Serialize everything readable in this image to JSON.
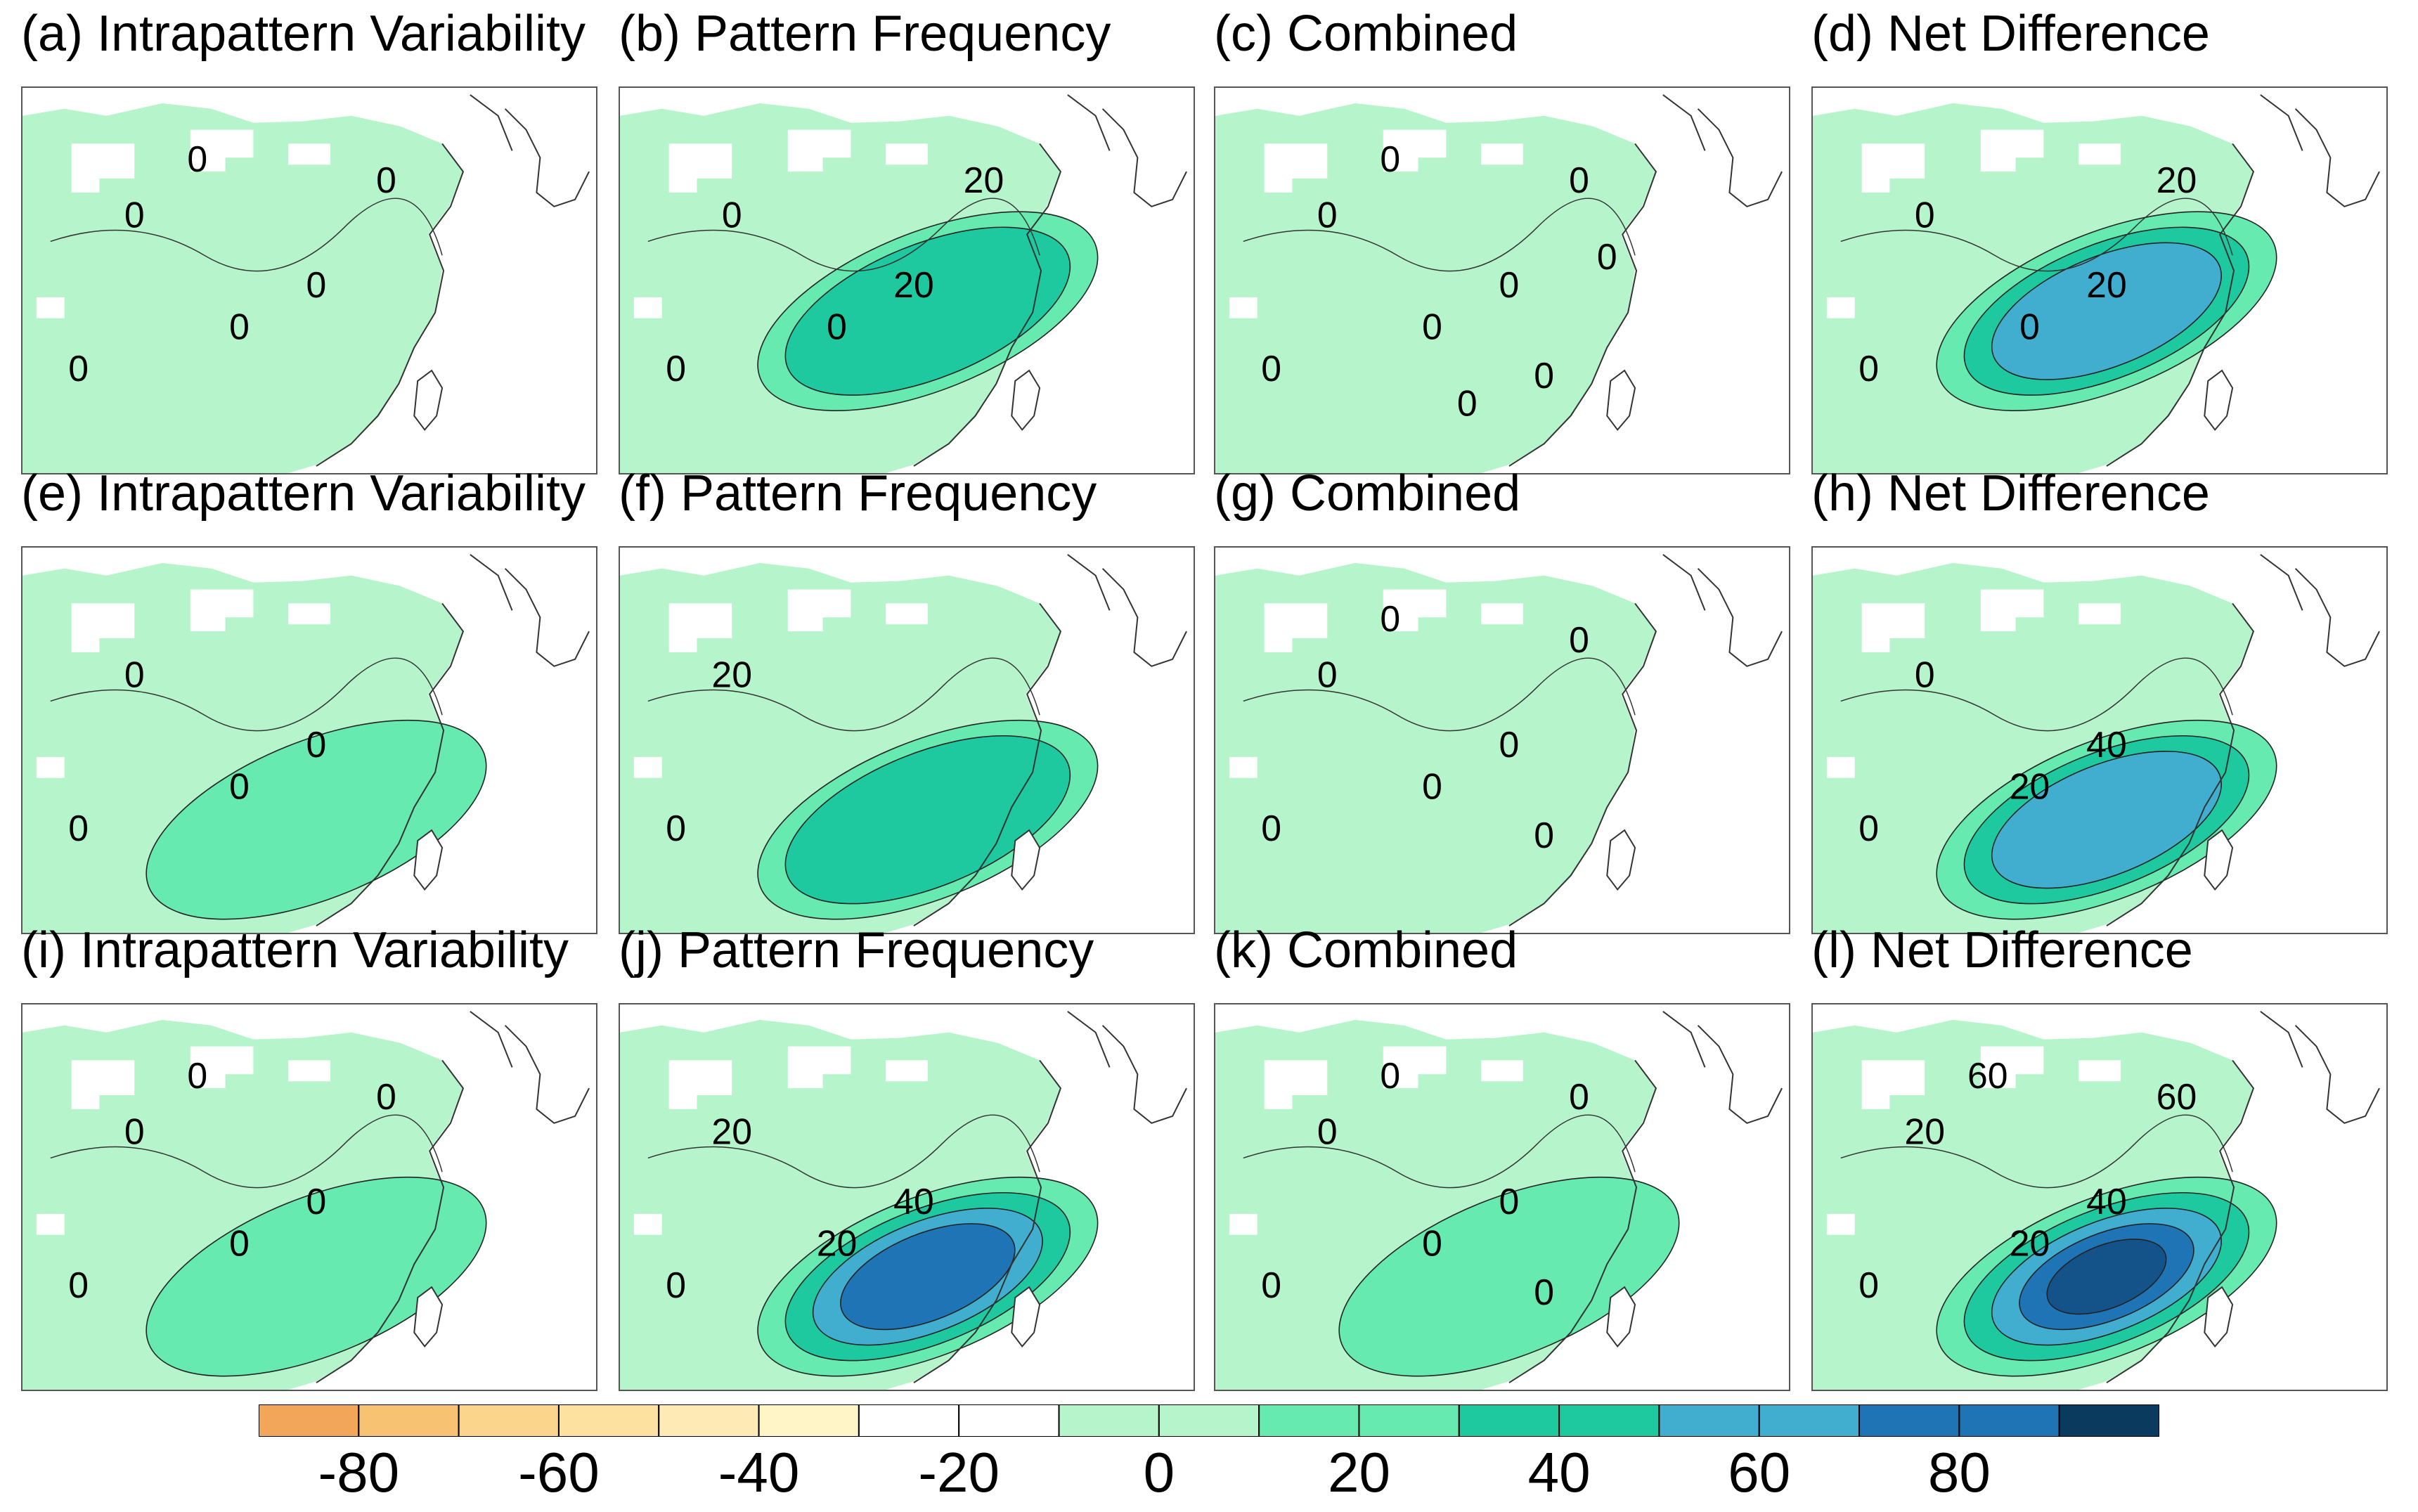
{
  "panels": [
    {
      "id": "a",
      "title": "(a) Intrapattern Variability",
      "contour_labels": [
        "0",
        "0",
        "0",
        "0",
        "0",
        "0"
      ],
      "peak": 1
    },
    {
      "id": "b",
      "title": "(b) Pattern Frequency",
      "contour_labels": [
        "0",
        "0",
        "0",
        "20",
        "20"
      ],
      "peak": 3
    },
    {
      "id": "c",
      "title": "(c) Combined",
      "contour_labels": [
        "0",
        "0",
        "0",
        "0",
        "0",
        "0",
        "0",
        "0",
        "0"
      ],
      "peak": 1
    },
    {
      "id": "d",
      "title": "(d) Net Difference",
      "contour_labels": [
        "0",
        "0",
        "0",
        "20",
        "20"
      ],
      "peak": 4
    },
    {
      "id": "e",
      "title": "(e) Intrapattern Variability",
      "contour_labels": [
        "0",
        "0",
        "0",
        "0"
      ],
      "peak": 2
    },
    {
      "id": "f",
      "title": "(f) Pattern Frequency",
      "contour_labels": [
        "0",
        "20"
      ],
      "peak": 3
    },
    {
      "id": "g",
      "title": "(g) Combined",
      "contour_labels": [
        "0",
        "0",
        "0",
        "0",
        "0",
        "0",
        "0"
      ],
      "peak": 1
    },
    {
      "id": "h",
      "title": "(h) Net Difference",
      "contour_labels": [
        "0",
        "0",
        "20",
        "40"
      ],
      "peak": 4
    },
    {
      "id": "i",
      "title": "(i) Intrapattern Variability",
      "contour_labels": [
        "0",
        "0",
        "0",
        "0",
        "0",
        "0"
      ],
      "peak": 2
    },
    {
      "id": "j",
      "title": "(j) Pattern Frequency",
      "contour_labels": [
        "0",
        "20",
        "20",
        "40"
      ],
      "peak": 5
    },
    {
      "id": "k",
      "title": "(k) Combined",
      "contour_labels": [
        "0",
        "0",
        "0",
        "0",
        "0",
        "0",
        "0"
      ],
      "peak": 2
    },
    {
      "id": "l",
      "title": "(l) Net Difference",
      "contour_labels": [
        "0",
        "20",
        "20",
        "40",
        "60",
        "60"
      ],
      "peak": 6
    }
  ],
  "colorbar": {
    "colors": [
      "#f2a65a",
      "#f7c272",
      "#fad58b",
      "#fce1a0",
      "#fdeab5",
      "#fff5c6",
      "#ffffff",
      "#ffffff",
      "#b6f5cc",
      "#b6f5cc",
      "#66eab0",
      "#66eab0",
      "#1ec9a0",
      "#1ec9a0",
      "#41aecf",
      "#41aecf",
      "#1e74b4",
      "#1e74b4",
      "#0a3a5e"
    ],
    "tick_labels": [
      "-80",
      "-60",
      "-40",
      "-20",
      "0",
      "20",
      "40",
      "60",
      "80"
    ]
  }
}
